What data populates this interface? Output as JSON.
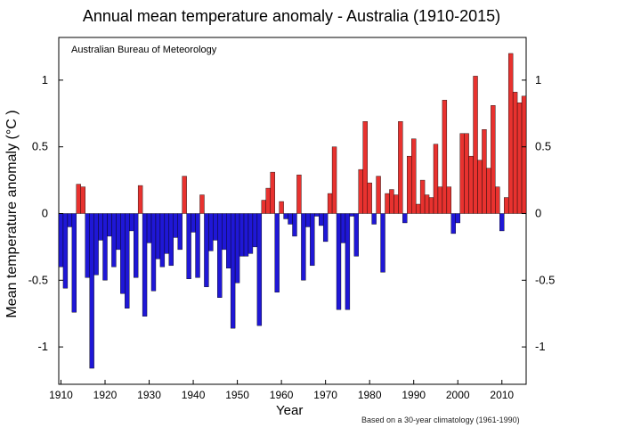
{
  "chart_data": {
    "type": "bar",
    "title": "Annual mean temperature anomaly - Australia (1910-2015)",
    "source": "Australian Bureau of Meteorology",
    "xlabel": "Year",
    "ylabel": "Mean temperature anomaly (°C )",
    "footnote": "Based on a 30-year climatology (1961-1990)",
    "x_ticks": [
      "1910",
      "1920",
      "1930",
      "1940",
      "1950",
      "1960",
      "1970",
      "1980",
      "1990",
      "2000",
      "2010"
    ],
    "y_ticks": [
      "-1",
      "-0.5",
      "0",
      "0.5",
      "1"
    ],
    "y_tick_values": [
      -1,
      -0.5,
      0,
      0.5,
      1
    ],
    "xlim": [
      1909.5,
      2015.5
    ],
    "ylim": [
      -1.28,
      1.32
    ],
    "grid": false,
    "colors": {
      "positive": "#e8322f",
      "negative": "#1f17d6",
      "bar_edge": "#000000"
    },
    "years": [
      1910,
      1911,
      1912,
      1913,
      1914,
      1915,
      1916,
      1917,
      1918,
      1919,
      1920,
      1921,
      1922,
      1923,
      1924,
      1925,
      1926,
      1927,
      1928,
      1929,
      1930,
      1931,
      1932,
      1933,
      1934,
      1935,
      1936,
      1937,
      1938,
      1939,
      1940,
      1941,
      1942,
      1943,
      1944,
      1945,
      1946,
      1947,
      1948,
      1949,
      1950,
      1951,
      1952,
      1953,
      1954,
      1955,
      1956,
      1957,
      1958,
      1959,
      1960,
      1961,
      1962,
      1963,
      1964,
      1965,
      1966,
      1967,
      1968,
      1969,
      1970,
      1971,
      1972,
      1973,
      1974,
      1975,
      1976,
      1977,
      1978,
      1979,
      1980,
      1981,
      1982,
      1983,
      1984,
      1985,
      1986,
      1987,
      1988,
      1989,
      1990,
      1991,
      1992,
      1993,
      1994,
      1995,
      1996,
      1997,
      1998,
      1999,
      2000,
      2001,
      2002,
      2003,
      2004,
      2005,
      2006,
      2007,
      2008,
      2009,
      2010,
      2011,
      2012,
      2013,
      2014,
      2015
    ],
    "values": [
      -0.4,
      -0.56,
      -0.1,
      -0.74,
      0.22,
      0.2,
      -0.48,
      -1.16,
      -0.46,
      -0.2,
      -0.5,
      -0.17,
      -0.4,
      -0.27,
      -0.6,
      -0.71,
      -0.13,
      -0.48,
      0.21,
      -0.77,
      -0.22,
      -0.58,
      -0.34,
      -0.4,
      -0.3,
      -0.39,
      -0.18,
      -0.27,
      0.28,
      -0.49,
      -0.14,
      -0.48,
      0.14,
      -0.55,
      -0.28,
      -0.2,
      -0.63,
      -0.27,
      -0.41,
      -0.86,
      -0.52,
      -0.32,
      -0.32,
      -0.3,
      -0.25,
      -0.84,
      0.1,
      0.19,
      0.31,
      -0.59,
      0.09,
      -0.04,
      -0.08,
      -0.17,
      0.29,
      -0.5,
      -0.1,
      -0.39,
      -0.02,
      -0.09,
      -0.21,
      0.15,
      0.5,
      -0.72,
      -0.22,
      -0.72,
      -0.02,
      -0.32,
      0.33,
      0.69,
      0.23,
      -0.08,
      0.28,
      -0.44,
      0.15,
      0.18,
      0.14,
      0.69,
      -0.07,
      0.43,
      0.56,
      0.07,
      0.25,
      0.14,
      0.12,
      0.52,
      0.2,
      0.85,
      0.2,
      -0.15,
      -0.07,
      0.6,
      0.6,
      0.43,
      1.03,
      0.4,
      0.63,
      0.34,
      0.81,
      0.2,
      -0.13,
      0.12,
      1.2,
      0.91,
      0.83,
      0.88
    ]
  }
}
